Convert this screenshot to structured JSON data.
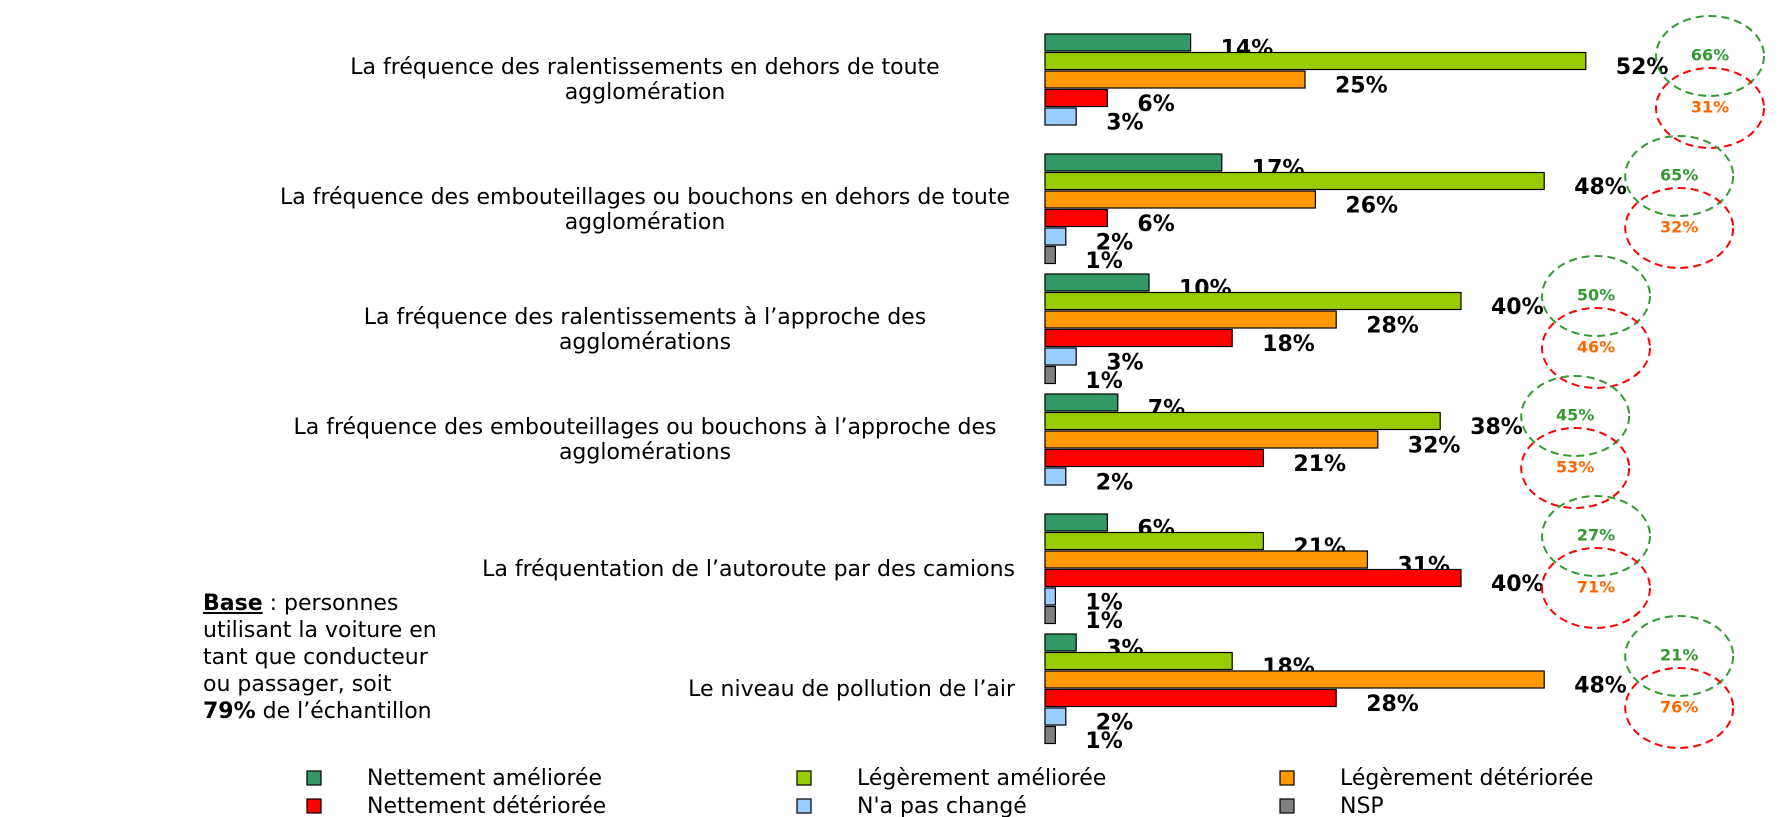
{
  "chart_data": {
    "type": "bar",
    "orientation": "horizontal",
    "categories": [
      "La fréquence des ralentissements en dehors de toute agglomération",
      "La fréquence des embouteillages ou bouchons en dehors de toute agglomération",
      "La fréquence des ralentissements à l’approche des agglomérations",
      "La fréquence des embouteillages ou bouchons à l’approche des agglomérations",
      "La fréquentation de l’autoroute par des camions",
      "Le niveau de pollution de l’air"
    ],
    "series": [
      {
        "name": "Nettement améliorée",
        "color": "#339966",
        "values": [
          14,
          17,
          10,
          7,
          6,
          3
        ],
        "value_labels": [
          "14%",
          "17%",
          "10%",
          "7%",
          "6%",
          "3%"
        ]
      },
      {
        "name": "Légèrement améliorée",
        "color": "#99cc00",
        "values": [
          52,
          48,
          40,
          38,
          21,
          18
        ],
        "value_labels": [
          "52%",
          "48%",
          "40%",
          "38%",
          "21%",
          "18%"
        ]
      },
      {
        "name": "Légèrement détériorée",
        "color": "#ff9900",
        "values": [
          25,
          26,
          28,
          32,
          31,
          48
        ],
        "value_labels": [
          "25%",
          "26%",
          "28%",
          "32%",
          "31%",
          "48%"
        ]
      },
      {
        "name": "Nettement détériorée",
        "color": "#ff0000",
        "values": [
          6,
          6,
          18,
          21,
          40,
          28
        ],
        "value_labels": [
          "6%",
          "6%",
          "18%",
          "21%",
          "40%",
          "28%"
        ]
      },
      {
        "name": "N'a pas changé",
        "color": "#99ccff",
        "values": [
          3,
          2,
          3,
          2,
          1,
          2
        ],
        "value_labels": [
          "3%",
          "2%",
          "3%",
          "2%",
          "1%",
          "2%"
        ]
      },
      {
        "name": "NSP",
        "color": "#808080",
        "values": [
          null,
          1,
          1,
          null,
          1,
          1
        ],
        "value_labels": [
          null,
          "1%",
          "1%",
          null,
          "1%",
          "1%"
        ]
      }
    ],
    "improved_totals": {
      "color": "#339933",
      "values": [
        66,
        65,
        50,
        45,
        27,
        21
      ],
      "value_labels": [
        "66%",
        "65%",
        "50%",
        "45%",
        "27%",
        "21%"
      ]
    },
    "deteriorated_totals": {
      "color": "#ff6600",
      "circle_color": "#ff0000",
      "values": [
        31,
        32,
        46,
        53,
        71,
        76
      ],
      "value_labels": [
        "31%",
        "32%",
        "46%",
        "53%",
        "71%",
        "76%"
      ]
    },
    "legend": "bottom",
    "note": {
      "label": "Base",
      "text1": " : personnes utilisant la voiture en tant que conducteur ou passager, soit ",
      "share": "79%",
      "text2": " de l’échantillon"
    }
  }
}
